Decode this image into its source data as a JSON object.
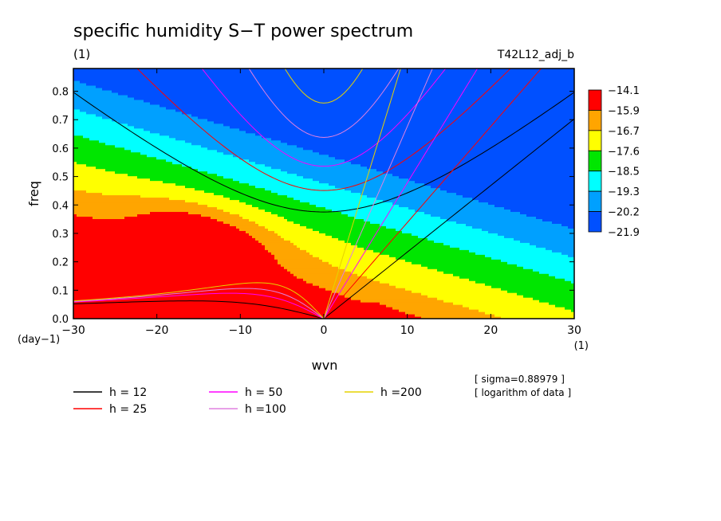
{
  "chart_data": {
    "type": "heatmap",
    "title": "specific humidity S−T power spectrum",
    "subtitle_left": "(1)",
    "subtitle_right": "T42L12_adj_b",
    "xlabel": "wvn",
    "ylabel": "freq",
    "x_unit": "(1)",
    "y_unit": "(day−1)",
    "xlim": [
      -30,
      30
    ],
    "ylim": [
      0,
      0.88
    ],
    "x_ticks": [
      -30,
      -20,
      -10,
      0,
      10,
      20,
      30
    ],
    "x_tick_labels": [
      "−30",
      "−20",
      "−10",
      "0",
      "10",
      "20",
      "30"
    ],
    "y_ticks": [
      0.0,
      0.1,
      0.2,
      0.3,
      0.4,
      0.5,
      0.6,
      0.7,
      0.8
    ],
    "y_tick_labels": [
      "0.0",
      "0.1",
      "0.2",
      "0.3",
      "0.4",
      "0.5",
      "0.6",
      "0.7",
      "0.8"
    ],
    "colorbar": {
      "labels": [
        "−14.1",
        "−15.9",
        "−16.7",
        "−17.6",
        "−18.5",
        "−19.3",
        "−20.2",
        "−21.9"
      ],
      "colors": [
        "#ff0000",
        "#ffa500",
        "#ffff00",
        "#00e600",
        "#00ffff",
        "#00a0ff",
        "#0050ff"
      ]
    },
    "field": {
      "note_value_model": "log power decreasing with freq, tilted by wvn",
      "levels": [
        -15.9,
        -16.7,
        -17.6,
        -18.5,
        -19.3,
        -20.2
      ],
      "colors_by_band": [
        "#ff0000",
        "#ffa500",
        "#ffff00",
        "#00e600",
        "#00ffff",
        "#00a0ff",
        "#0050ff"
      ]
    },
    "dispersion_curves": [
      {
        "h": 12,
        "color": "#000000"
      },
      {
        "h": 25,
        "color": "#ff0000"
      },
      {
        "h": 50,
        "color": "#ff00ff"
      },
      {
        "h": 100,
        "color": "#e080e0"
      },
      {
        "h": 200,
        "color": "#e6d200"
      }
    ],
    "annotations": [
      "[ sigma=0.88979 ]",
      "[ logarithm of data ]"
    ],
    "legend": [
      {
        "label": "h = 12",
        "color": "#000000"
      },
      {
        "label": "h = 50",
        "color": "#ff00ff"
      },
      {
        "label": "h =200",
        "color": "#e6d200"
      },
      {
        "label": "h = 25",
        "color": "#ff0000"
      },
      {
        "label": "h =100",
        "color": "#e080e0"
      }
    ]
  }
}
